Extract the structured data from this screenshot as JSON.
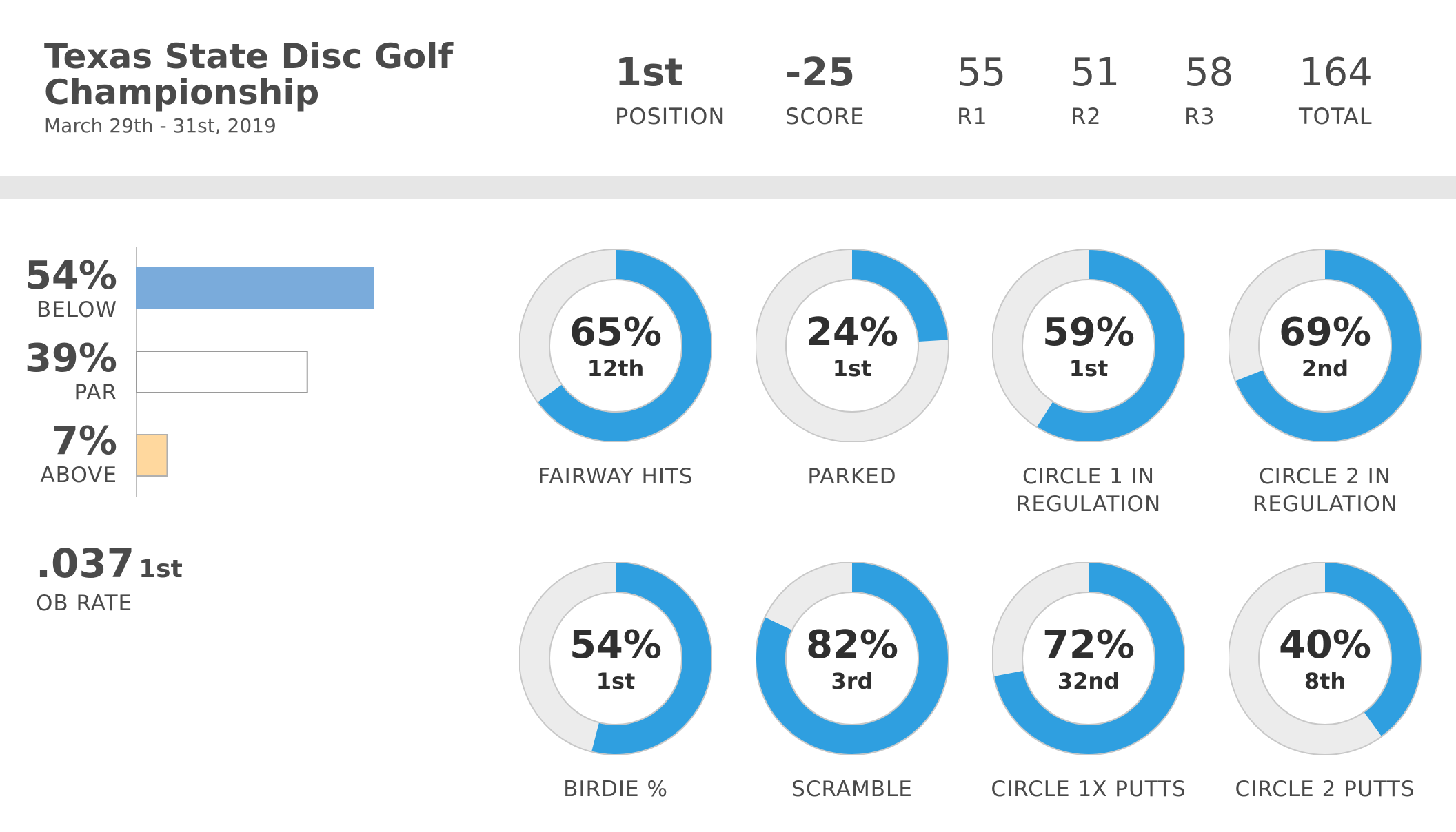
{
  "header": {
    "title": "Texas State Disc Golf Championship",
    "date": "March 29th - 31st, 2019",
    "stats": [
      {
        "value": "1st",
        "label": "POSITION",
        "bold": true
      },
      {
        "value": "-25",
        "label": "SCORE",
        "bold": true
      },
      {
        "value": "55",
        "label": "R1",
        "bold": false
      },
      {
        "value": "51",
        "label": "R2",
        "bold": false
      },
      {
        "value": "58",
        "label": "R3",
        "bold": false
      },
      {
        "value": "164",
        "label": "TOTAL",
        "bold": false
      }
    ]
  },
  "colors": {
    "blue": "#2f9fe0",
    "track": "#ececec",
    "below_bar": "#7aabdb",
    "par_bar": "#ffffff",
    "above_bar": "#ffd89e"
  },
  "ob": {
    "value": ".037",
    "rank": "1st",
    "label": "OB RATE"
  },
  "chart_data": [
    {
      "type": "bar",
      "categories": [
        "BELOW",
        "PAR",
        "ABOVE"
      ],
      "values": [
        54,
        39,
        7
      ],
      "labels": [
        "54%",
        "39%",
        "7%"
      ]
    },
    {
      "type": "pie",
      "categories": [
        "FAIRWAY HITS",
        "PARKED",
        "CIRCLE 1 IN\nREGULATION",
        "CIRCLE 2 IN\nREGULATION",
        "BIRDIE %",
        "SCRAMBLE",
        "CIRCLE 1X PUTTS",
        "CIRCLE 2 PUTTS"
      ],
      "values": [
        65,
        24,
        59,
        69,
        54,
        82,
        72,
        40
      ],
      "labels": [
        "65%",
        "24%",
        "59%",
        "69%",
        "54%",
        "82%",
        "72%",
        "40%"
      ],
      "ranks": [
        "12th",
        "1st",
        "1st",
        "2nd",
        "1st",
        "3rd",
        "32nd",
        "8th"
      ]
    }
  ]
}
